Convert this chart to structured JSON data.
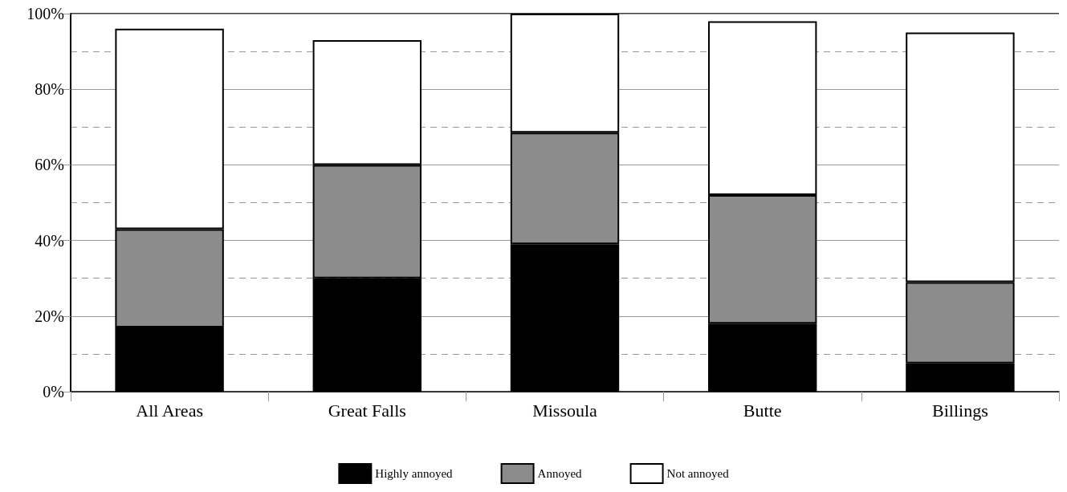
{
  "chart_data": {
    "type": "bar",
    "stacked": true,
    "categories": [
      "All Areas",
      "Great Falls",
      "Missoula",
      "Butte",
      "Billings"
    ],
    "series": [
      {
        "name": "Highly annoyed",
        "color": "#000000",
        "values": [
          17,
          30,
          39,
          18,
          7.5
        ]
      },
      {
        "name": "Annoyed",
        "color": "#8c8c8c",
        "values": [
          26,
          30,
          29.5,
          34,
          21.5
        ]
      },
      {
        "name": "Not annoyed",
        "color": "#ffffff",
        "values": [
          53,
          33,
          31.5,
          46,
          66
        ]
      }
    ],
    "ylim": [
      0,
      100
    ],
    "yticks": [
      {
        "value": 0,
        "label": "0%"
      },
      {
        "value": 20,
        "label": "20%"
      },
      {
        "value": 40,
        "label": "40%"
      },
      {
        "value": 60,
        "label": "60%"
      },
      {
        "value": 80,
        "label": "80%"
      },
      {
        "value": 100,
        "label": "100%"
      }
    ],
    "grid": true,
    "legend": "bottom"
  }
}
